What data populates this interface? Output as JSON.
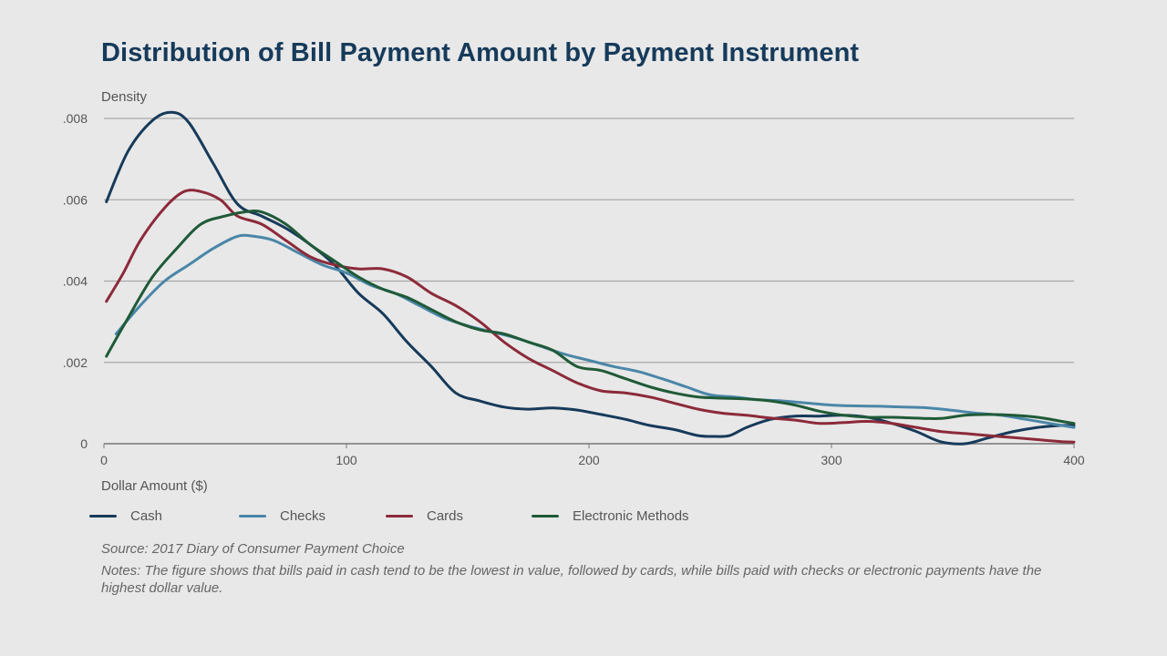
{
  "chart_data": {
    "type": "line",
    "title": "Distribution of Bill Payment Amount by Payment Instrument",
    "ylabel": "Density",
    "xlabel": "Dollar Amount ($)",
    "xlim": [
      0,
      400
    ],
    "ylim": [
      0,
      0.008
    ],
    "x_ticks": [
      0,
      100,
      200,
      300,
      400
    ],
    "x_tick_labels": [
      "0",
      "100",
      "200",
      "300",
      "400"
    ],
    "y_ticks": [
      0,
      0.002,
      0.004,
      0.006,
      0.008
    ],
    "y_tick_labels": [
      "0",
      ".002",
      ".004",
      ".006",
      ".008"
    ],
    "grid": "horizontal",
    "legend_position": "bottom",
    "series": [
      {
        "name": "Cash",
        "color": "#163a5a",
        "points": [
          [
            1,
            0.00595
          ],
          [
            10,
            0.0072
          ],
          [
            20,
            0.00795
          ],
          [
            28,
            0.00815
          ],
          [
            35,
            0.0079
          ],
          [
            45,
            0.0069
          ],
          [
            55,
            0.0059
          ],
          [
            65,
            0.0056
          ],
          [
            75,
            0.0053
          ],
          [
            85,
            0.0049
          ],
          [
            95,
            0.0044
          ],
          [
            105,
            0.0037
          ],
          [
            115,
            0.0032
          ],
          [
            125,
            0.0025
          ],
          [
            135,
            0.0019
          ],
          [
            145,
            0.00125
          ],
          [
            155,
            0.00105
          ],
          [
            165,
            0.0009
          ],
          [
            175,
            0.00085
          ],
          [
            185,
            0.00088
          ],
          [
            195,
            0.00083
          ],
          [
            205,
            0.00072
          ],
          [
            215,
            0.0006
          ],
          [
            225,
            0.00045
          ],
          [
            235,
            0.00035
          ],
          [
            245,
            0.0002
          ],
          [
            252,
            0.00018
          ],
          [
            258,
            0.0002
          ],
          [
            265,
            0.0004
          ],
          [
            275,
            0.0006
          ],
          [
            285,
            0.00068
          ],
          [
            295,
            0.00068
          ],
          [
            305,
            0.0007
          ],
          [
            315,
            0.00065
          ],
          [
            325,
            0.0005
          ],
          [
            335,
            0.0003
          ],
          [
            345,
            5e-05
          ],
          [
            355,
            0.0
          ],
          [
            365,
            0.00015
          ],
          [
            375,
            0.0003
          ],
          [
            385,
            0.0004
          ],
          [
            395,
            0.00045
          ],
          [
            400,
            0.00045
          ]
        ]
      },
      {
        "name": "Checks",
        "color": "#4a86a8",
        "points": [
          [
            5,
            0.0027
          ],
          [
            15,
            0.0034
          ],
          [
            25,
            0.004
          ],
          [
            35,
            0.0044
          ],
          [
            45,
            0.0048
          ],
          [
            55,
            0.0051
          ],
          [
            62,
            0.0051
          ],
          [
            70,
            0.005
          ],
          [
            80,
            0.0047
          ],
          [
            90,
            0.0044
          ],
          [
            100,
            0.0042
          ],
          [
            110,
            0.0039
          ],
          [
            120,
            0.0037
          ],
          [
            130,
            0.0034
          ],
          [
            140,
            0.0031
          ],
          [
            150,
            0.0029
          ],
          [
            160,
            0.00275
          ],
          [
            170,
            0.0026
          ],
          [
            180,
            0.0024
          ],
          [
            190,
            0.0022
          ],
          [
            200,
            0.00205
          ],
          [
            210,
            0.0019
          ],
          [
            220,
            0.00178
          ],
          [
            230,
            0.0016
          ],
          [
            240,
            0.0014
          ],
          [
            250,
            0.0012
          ],
          [
            260,
            0.00115
          ],
          [
            270,
            0.00108
          ],
          [
            280,
            0.00105
          ],
          [
            290,
            0.001
          ],
          [
            300,
            0.00095
          ],
          [
            310,
            0.00093
          ],
          [
            320,
            0.00092
          ],
          [
            330,
            0.0009
          ],
          [
            340,
            0.00088
          ],
          [
            350,
            0.00082
          ],
          [
            360,
            0.00075
          ],
          [
            370,
            0.0007
          ],
          [
            380,
            0.0006
          ],
          [
            390,
            0.0005
          ],
          [
            400,
            0.0004
          ]
        ]
      },
      {
        "name": "Cards",
        "color": "#8c2a3a",
        "points": [
          [
            1,
            0.0035
          ],
          [
            8,
            0.0042
          ],
          [
            15,
            0.005
          ],
          [
            25,
            0.0058
          ],
          [
            33,
            0.0062
          ],
          [
            40,
            0.0062
          ],
          [
            48,
            0.006
          ],
          [
            55,
            0.0056
          ],
          [
            65,
            0.0054
          ],
          [
            75,
            0.005
          ],
          [
            85,
            0.0046
          ],
          [
            95,
            0.0044
          ],
          [
            105,
            0.0043
          ],
          [
            115,
            0.0043
          ],
          [
            125,
            0.0041
          ],
          [
            135,
            0.0037
          ],
          [
            145,
            0.0034
          ],
          [
            155,
            0.003
          ],
          [
            165,
            0.0025
          ],
          [
            175,
            0.0021
          ],
          [
            185,
            0.0018
          ],
          [
            195,
            0.0015
          ],
          [
            205,
            0.0013
          ],
          [
            215,
            0.00125
          ],
          [
            225,
            0.00115
          ],
          [
            235,
            0.001
          ],
          [
            245,
            0.00085
          ],
          [
            255,
            0.00075
          ],
          [
            265,
            0.0007
          ],
          [
            275,
            0.00063
          ],
          [
            285,
            0.00058
          ],
          [
            295,
            0.0005
          ],
          [
            305,
            0.00052
          ],
          [
            315,
            0.00055
          ],
          [
            325,
            0.0005
          ],
          [
            335,
            0.0004
          ],
          [
            345,
            0.0003
          ],
          [
            355,
            0.00025
          ],
          [
            365,
            0.0002
          ],
          [
            375,
            0.00015
          ],
          [
            385,
            0.0001
          ],
          [
            395,
            5e-05
          ],
          [
            400,
            4e-05
          ]
        ]
      },
      {
        "name": "Electronic Methods",
        "color": "#1f5a37",
        "points": [
          [
            1,
            0.00215
          ],
          [
            10,
            0.0031
          ],
          [
            20,
            0.0041
          ],
          [
            30,
            0.0048
          ],
          [
            40,
            0.0054
          ],
          [
            50,
            0.0056
          ],
          [
            58,
            0.0057
          ],
          [
            65,
            0.0057
          ],
          [
            75,
            0.0054
          ],
          [
            85,
            0.0049
          ],
          [
            95,
            0.0045
          ],
          [
            105,
            0.0041
          ],
          [
            115,
            0.0038
          ],
          [
            125,
            0.0036
          ],
          [
            135,
            0.0033
          ],
          [
            145,
            0.003
          ],
          [
            155,
            0.0028
          ],
          [
            165,
            0.0027
          ],
          [
            175,
            0.0025
          ],
          [
            185,
            0.0023
          ],
          [
            195,
            0.0019
          ],
          [
            205,
            0.0018
          ],
          [
            215,
            0.0016
          ],
          [
            225,
            0.0014
          ],
          [
            235,
            0.00125
          ],
          [
            245,
            0.00115
          ],
          [
            255,
            0.00112
          ],
          [
            265,
            0.0011
          ],
          [
            275,
            0.00105
          ],
          [
            285,
            0.00095
          ],
          [
            295,
            0.0008
          ],
          [
            305,
            0.0007
          ],
          [
            315,
            0.00065
          ],
          [
            325,
            0.00065
          ],
          [
            335,
            0.00063
          ],
          [
            345,
            0.00062
          ],
          [
            355,
            0.0007
          ],
          [
            365,
            0.00072
          ],
          [
            375,
            0.0007
          ],
          [
            385,
            0.00065
          ],
          [
            395,
            0.00055
          ],
          [
            400,
            0.0005
          ]
        ]
      }
    ]
  },
  "source_text": "Source: 2017 Diary of Consumer Payment Choice",
  "notes_text": "Notes: The figure shows that bills paid in cash tend to be the lowest in value, followed by cards, while bills paid with checks or electronic payments have the highest dollar value."
}
